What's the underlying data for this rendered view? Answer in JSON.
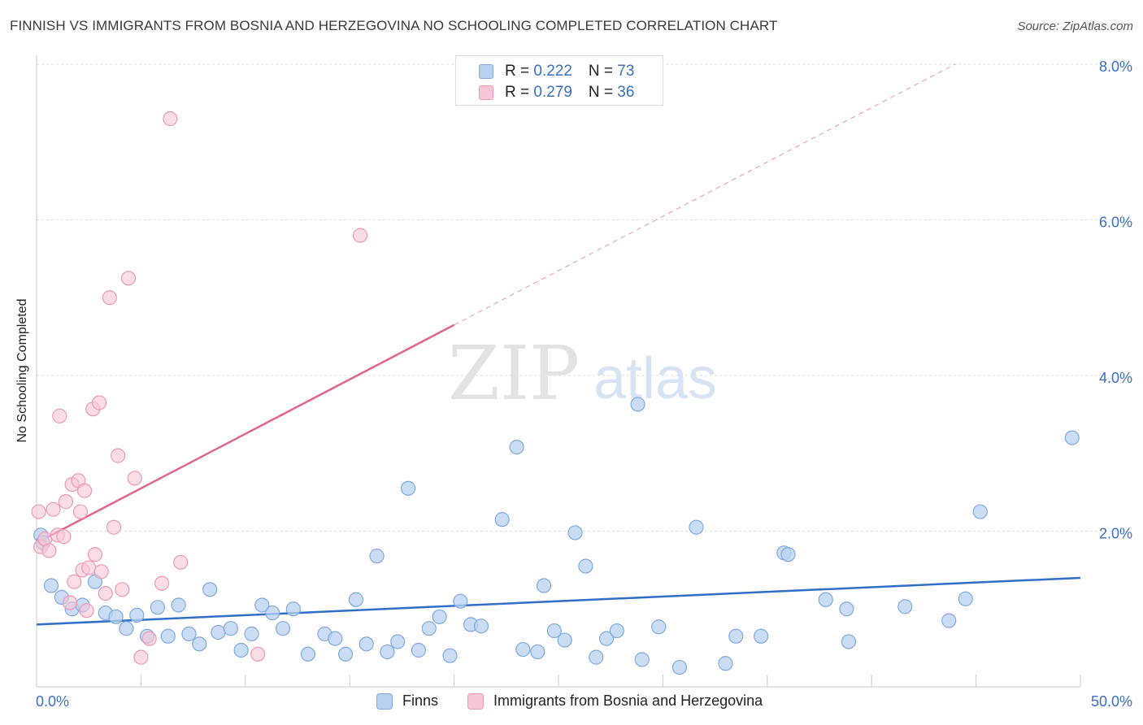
{
  "header": {
    "title": "FINNISH VS IMMIGRANTS FROM BOSNIA AND HERZEGOVINA NO SCHOOLING COMPLETED CORRELATION CHART",
    "source": "Source: ZipAtlas.com"
  },
  "watermark": {
    "zip": "ZIP",
    "atlas": "atlas"
  },
  "colors": {
    "finns_fill": "#b9d1f1",
    "finns_stroke": "#7fa9e0",
    "finns_line": "#2f6fc8",
    "bosnia_fill": "#f8c6d6",
    "bosnia_stroke": "#ec9ab5",
    "bosnia_line": "#e0668f",
    "axis_label": "#3a6fc4",
    "grid": "#dddddd"
  },
  "legend": {
    "rows": [
      {
        "r_label": "R = ",
        "r_value": "0.222",
        "n_label": "N = ",
        "n_value": "73"
      },
      {
        "r_label": "R = ",
        "r_value": "0.279",
        "n_label": "N = ",
        "n_value": "36"
      }
    ]
  },
  "chart_data": {
    "type": "scatter",
    "title": "FINNISH VS IMMIGRANTS FROM BOSNIA AND HERZEGOVINA NO SCHOOLING COMPLETED CORRELATION CHART",
    "xlabel": "",
    "ylabel": "No Schooling Completed",
    "xlim": [
      0,
      50
    ],
    "ylim": [
      0,
      8
    ],
    "x_tick_labels": [
      "0.0%",
      "50.0%"
    ],
    "y_ticks": [
      2,
      4,
      6,
      8
    ],
    "y_tick_labels": [
      "2.0%",
      "4.0%",
      "6.0%",
      "8.0%"
    ],
    "grid": true,
    "legend_position": "top-center",
    "series": [
      {
        "name": "Finns",
        "points": [
          [
            0.2,
            1.95
          ],
          [
            0.3,
            1.85
          ],
          [
            0.7,
            1.3
          ],
          [
            1.2,
            1.15
          ],
          [
            1.7,
            1.0
          ],
          [
            2.2,
            1.05
          ],
          [
            2.8,
            1.35
          ],
          [
            3.3,
            0.95
          ],
          [
            3.8,
            0.9
          ],
          [
            4.3,
            0.75
          ],
          [
            4.8,
            0.92
          ],
          [
            5.3,
            0.65
          ],
          [
            5.8,
            1.02
          ],
          [
            6.3,
            0.65
          ],
          [
            6.8,
            1.05
          ],
          [
            7.3,
            0.68
          ],
          [
            7.8,
            0.55
          ],
          [
            8.3,
            1.25
          ],
          [
            8.7,
            0.7
          ],
          [
            9.3,
            0.75
          ],
          [
            9.8,
            0.47
          ],
          [
            10.3,
            0.68
          ],
          [
            10.8,
            1.05
          ],
          [
            11.3,
            0.95
          ],
          [
            11.8,
            0.75
          ],
          [
            12.3,
            1.0
          ],
          [
            13.0,
            0.42
          ],
          [
            13.8,
            0.68
          ],
          [
            14.3,
            0.62
          ],
          [
            14.8,
            0.42
          ],
          [
            15.3,
            1.12
          ],
          [
            15.8,
            0.55
          ],
          [
            16.3,
            1.68
          ],
          [
            16.8,
            0.45
          ],
          [
            17.3,
            0.58
          ],
          [
            17.8,
            2.55
          ],
          [
            18.3,
            0.47
          ],
          [
            18.8,
            0.75
          ],
          [
            19.3,
            0.9
          ],
          [
            19.8,
            0.4
          ],
          [
            20.3,
            1.1
          ],
          [
            20.8,
            0.8
          ],
          [
            21.3,
            0.78
          ],
          [
            22.3,
            2.15
          ],
          [
            23.0,
            3.08
          ],
          [
            23.3,
            0.48
          ],
          [
            24.0,
            0.45
          ],
          [
            24.3,
            1.3
          ],
          [
            24.8,
            0.72
          ],
          [
            25.3,
            0.6
          ],
          [
            25.8,
            1.98
          ],
          [
            26.3,
            1.55
          ],
          [
            26.8,
            0.38
          ],
          [
            27.3,
            0.62
          ],
          [
            27.8,
            0.72
          ],
          [
            28.8,
            3.63
          ],
          [
            29.0,
            0.35
          ],
          [
            29.8,
            0.77
          ],
          [
            30.8,
            0.25
          ],
          [
            31.6,
            2.05
          ],
          [
            33.0,
            0.3
          ],
          [
            33.5,
            0.65
          ],
          [
            34.7,
            0.65
          ],
          [
            35.8,
            1.72
          ],
          [
            36.0,
            1.7
          ],
          [
            37.8,
            1.12
          ],
          [
            38.8,
            1.0
          ],
          [
            38.9,
            0.58
          ],
          [
            41.6,
            1.03
          ],
          [
            43.7,
            0.85
          ],
          [
            44.5,
            1.13
          ],
          [
            45.2,
            2.25
          ],
          [
            49.6,
            3.2
          ]
        ],
        "trend": {
          "x": [
            0,
            50
          ],
          "y": [
            0.8,
            1.4
          ]
        }
      },
      {
        "name": "Immigrants from Bosnia and Herzegovina",
        "points": [
          [
            0.1,
            2.25
          ],
          [
            0.2,
            1.8
          ],
          [
            0.4,
            1.9
          ],
          [
            0.6,
            1.75
          ],
          [
            0.8,
            2.28
          ],
          [
            1.0,
            1.95
          ],
          [
            1.1,
            3.48
          ],
          [
            1.3,
            1.93
          ],
          [
            1.4,
            2.38
          ],
          [
            1.6,
            1.08
          ],
          [
            1.7,
            2.6
          ],
          [
            1.8,
            1.35
          ],
          [
            2.0,
            2.65
          ],
          [
            2.1,
            2.25
          ],
          [
            2.2,
            1.5
          ],
          [
            2.3,
            2.52
          ],
          [
            2.4,
            0.98
          ],
          [
            2.5,
            1.53
          ],
          [
            2.7,
            3.57
          ],
          [
            2.8,
            1.7
          ],
          [
            3.0,
            3.65
          ],
          [
            3.1,
            1.48
          ],
          [
            3.3,
            1.2
          ],
          [
            3.5,
            5.0
          ],
          [
            3.7,
            2.05
          ],
          [
            3.9,
            2.97
          ],
          [
            4.1,
            1.25
          ],
          [
            4.4,
            5.25
          ],
          [
            4.7,
            2.68
          ],
          [
            5.0,
            0.38
          ],
          [
            5.4,
            0.62
          ],
          [
            6.0,
            1.33
          ],
          [
            6.4,
            7.3
          ],
          [
            6.9,
            1.6
          ],
          [
            10.6,
            0.42
          ],
          [
            15.5,
            5.8
          ]
        ],
        "trend_solid": {
          "x": [
            0,
            20
          ],
          "y": [
            1.85,
            4.65
          ]
        },
        "trend_dashed": {
          "x": [
            20,
            44
          ],
          "y": [
            4.65,
            8.0
          ]
        }
      }
    ]
  }
}
